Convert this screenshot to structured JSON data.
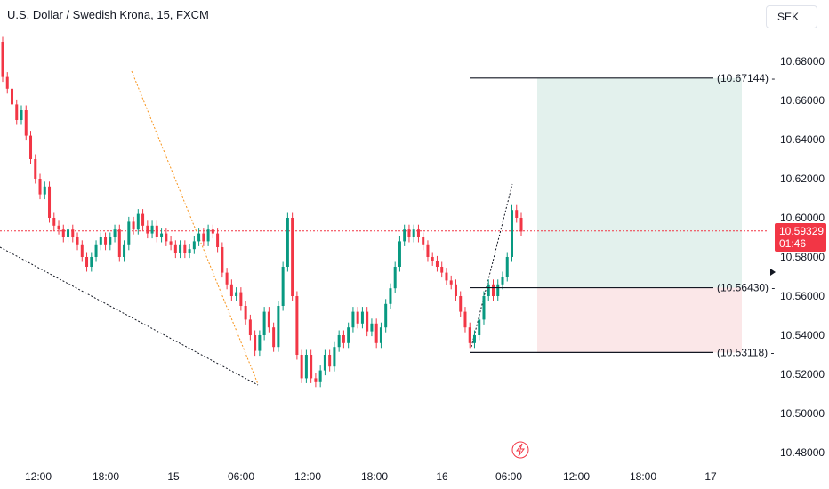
{
  "header": {
    "title": "U.S. Dollar / Swedish Krona, 15, FXCM",
    "currency": "SEK"
  },
  "price_tag": {
    "price": "10.59329",
    "countdown": "01:46"
  },
  "colors": {
    "up": "#089981",
    "down": "#f23645",
    "profit_zone": "#e3f1ed",
    "loss_zone": "#fbe7e8",
    "current_line": "#f23645",
    "trend_line": "#f7931a"
  },
  "icons": {
    "alert": "lightning-icon"
  },
  "chart_data": {
    "type": "candlestick",
    "y_ticks": [
      "10.68000",
      "10.66000",
      "10.64000",
      "10.62000",
      "10.60000",
      "10.58000",
      "10.56000",
      "10.54000",
      "10.52000",
      "10.50000",
      "10.48000"
    ],
    "ylim": [
      10.475,
      10.69
    ],
    "x_ticks": [
      "12:00",
      "18:00",
      "15",
      "06:00",
      "12:00",
      "18:00",
      "16",
      "06:00",
      "12:00",
      "18:00",
      "17"
    ],
    "levels": [
      {
        "label": "(10.67144) -",
        "value": 10.67144
      },
      {
        "label": "(10.56430) -",
        "value": 10.5643
      },
      {
        "label": "(10.53118) -",
        "value": 10.53118
      }
    ],
    "current_price": 10.59329,
    "candles": [
      [
        10.69,
        10.672
      ],
      [
        10.672,
        10.666
      ],
      [
        10.666,
        10.658
      ],
      [
        10.658,
        10.65
      ],
      [
        10.65,
        10.655
      ],
      [
        10.655,
        10.642
      ],
      [
        10.642,
        10.63
      ],
      [
        10.63,
        10.62
      ],
      [
        10.62,
        10.612
      ],
      [
        10.612,
        10.616
      ],
      [
        10.616,
        10.6
      ],
      [
        10.6,
        10.596
      ],
      [
        10.596,
        10.594
      ],
      [
        10.594,
        10.59
      ],
      [
        10.59,
        10.594
      ],
      [
        10.594,
        10.59
      ],
      [
        10.59,
        10.586
      ],
      [
        10.586,
        10.58
      ],
      [
        10.58,
        10.575
      ],
      [
        10.575,
        10.58
      ],
      [
        10.58,
        10.586
      ],
      [
        10.586,
        10.59
      ],
      [
        10.59,
        10.586
      ],
      [
        10.586,
        10.59
      ],
      [
        10.59,
        10.594
      ],
      [
        10.594,
        10.58
      ],
      [
        10.58,
        10.586
      ],
      [
        10.586,
        10.598
      ],
      [
        10.598,
        10.594
      ],
      [
        10.594,
        10.602
      ],
      [
        10.602,
        10.596
      ],
      [
        10.596,
        10.592
      ],
      [
        10.592,
        10.596
      ],
      [
        10.596,
        10.59
      ],
      [
        10.59,
        10.592
      ],
      [
        10.592,
        10.588
      ],
      [
        10.588,
        10.586
      ],
      [
        10.586,
        10.582
      ],
      [
        10.582,
        10.586
      ],
      [
        10.586,
        10.582
      ],
      [
        10.582,
        10.584
      ],
      [
        10.584,
        10.588
      ],
      [
        10.588,
        10.592
      ],
      [
        10.592,
        10.588
      ],
      [
        10.588,
        10.594
      ],
      [
        10.594,
        10.592
      ],
      [
        10.592,
        10.585
      ],
      [
        10.585,
        10.572
      ],
      [
        10.572,
        10.566
      ],
      [
        10.566,
        10.56
      ],
      [
        10.56,
        10.562
      ],
      [
        10.562,
        10.555
      ],
      [
        10.555,
        10.548
      ],
      [
        10.548,
        10.54
      ],
      [
        10.54,
        10.532
      ],
      [
        10.532,
        10.54
      ],
      [
        10.54,
        10.552
      ],
      [
        10.552,
        10.544
      ],
      [
        10.544,
        10.534
      ],
      [
        10.534,
        10.555
      ],
      [
        10.555,
        10.575
      ],
      [
        10.575,
        10.6
      ],
      [
        10.6,
        10.56
      ],
      [
        10.56,
        10.53
      ],
      [
        10.53,
        10.518
      ],
      [
        10.518,
        10.53
      ],
      [
        10.53,
        10.518
      ],
      [
        10.518,
        10.516
      ],
      [
        10.516,
        10.522
      ],
      [
        10.522,
        10.53
      ],
      [
        10.53,
        10.524
      ],
      [
        10.524,
        10.534
      ],
      [
        10.534,
        10.54
      ],
      [
        10.54,
        10.536
      ],
      [
        10.536,
        10.544
      ],
      [
        10.544,
        10.552
      ],
      [
        10.552,
        10.546
      ],
      [
        10.546,
        10.552
      ],
      [
        10.552,
        10.542
      ],
      [
        10.542,
        10.546
      ],
      [
        10.546,
        10.536
      ],
      [
        10.536,
        10.544
      ],
      [
        10.544,
        10.556
      ],
      [
        10.556,
        10.564
      ],
      [
        10.564,
        10.575
      ],
      [
        10.575,
        10.588
      ],
      [
        10.588,
        10.594
      ],
      [
        10.594,
        10.59
      ],
      [
        10.59,
        10.594
      ],
      [
        10.594,
        10.59
      ],
      [
        10.59,
        10.586
      ],
      [
        10.586,
        10.58
      ],
      [
        10.58,
        10.578
      ],
      [
        10.578,
        10.575
      ],
      [
        10.575,
        10.572
      ],
      [
        10.572,
        10.568
      ],
      [
        10.568,
        10.566
      ],
      [
        10.566,
        10.56
      ],
      [
        10.56,
        10.552
      ],
      [
        10.552,
        10.544
      ],
      [
        10.544,
        10.536
      ],
      [
        10.536,
        10.54
      ],
      [
        10.54,
        10.548
      ],
      [
        10.548,
        10.56
      ],
      [
        10.56,
        10.566
      ],
      [
        10.566,
        10.56
      ],
      [
        10.56,
        10.566
      ],
      [
        10.566,
        10.57
      ],
      [
        10.57,
        10.58
      ],
      [
        10.58,
        10.604
      ],
      [
        10.604,
        10.6
      ],
      [
        10.6,
        10.593
      ]
    ]
  }
}
